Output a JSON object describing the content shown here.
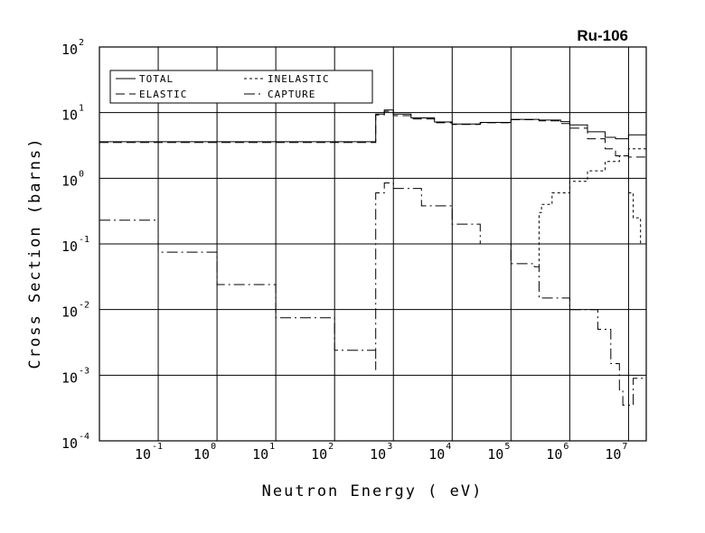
{
  "chart_data": {
    "type": "line",
    "title": "Ru-106",
    "xlabel": "Neutron Energy ( eV)",
    "ylabel": "Cross Section (barns)",
    "xscale": "log",
    "yscale": "log",
    "xlim": [
      0.01,
      20000000
    ],
    "ylim": [
      0.0001,
      100
    ],
    "grid": true,
    "legend_position": "top-left",
    "x_ticks": [
      {
        "base": "10",
        "exp": "-1",
        "value": 0.1
      },
      {
        "base": "10",
        "exp": "0",
        "value": 1
      },
      {
        "base": "10",
        "exp": "1",
        "value": 10
      },
      {
        "base": "10",
        "exp": "2",
        "value": 100
      },
      {
        "base": "10",
        "exp": "3",
        "value": 1000
      },
      {
        "base": "10",
        "exp": "4",
        "value": 10000
      },
      {
        "base": "10",
        "exp": "5",
        "value": 100000
      },
      {
        "base": "10",
        "exp": "6",
        "value": 1000000
      },
      {
        "base": "10",
        "exp": "7",
        "value": 10000000
      }
    ],
    "y_ticks": [
      {
        "base": "10",
        "exp": "-4",
        "value": 0.0001
      },
      {
        "base": "10",
        "exp": "-3",
        "value": 0.001
      },
      {
        "base": "10",
        "exp": "-2",
        "value": 0.01
      },
      {
        "base": "10",
        "exp": "-1",
        "value": 0.1
      },
      {
        "base": "10",
        "exp": "0",
        "value": 1
      },
      {
        "base": "10",
        "exp": "1",
        "value": 10
      },
      {
        "base": "10",
        "exp": "2",
        "value": 100
      }
    ],
    "series": [
      {
        "name": "TOTAL",
        "dash": "",
        "x": [
          0.01,
          0.05,
          0.3,
          10,
          100,
          500,
          500,
          700,
          1000,
          2000,
          5000,
          10000,
          30000,
          100000,
          300000,
          700000,
          1000000,
          2000000,
          4000000,
          6000000,
          10000000,
          20000000
        ],
        "y": [
          3.6,
          3.6,
          3.6,
          3.6,
          3.6,
          3.6,
          9.5,
          11.0,
          9.5,
          8.3,
          7.2,
          6.7,
          7.1,
          7.9,
          7.7,
          7.3,
          6.5,
          5.1,
          4.2,
          4.0,
          4.6,
          4.3
        ]
      },
      {
        "name": "ELASTIC",
        "dash": "10 5",
        "x": [
          0.01,
          0.05,
          0.3,
          10,
          100,
          500,
          500,
          700,
          1000,
          2000,
          5000,
          10000,
          30000,
          100000,
          300000,
          700000,
          1000000,
          2000000,
          4000000,
          6000000,
          10000000,
          20000000
        ],
        "y": [
          3.5,
          3.5,
          3.5,
          3.5,
          3.5,
          3.5,
          9.2,
          10.5,
          9.0,
          8.0,
          7.0,
          6.6,
          7.0,
          7.8,
          7.5,
          6.8,
          5.8,
          4.0,
          2.8,
          2.2,
          2.1,
          1.9
        ]
      },
      {
        "name": "INELASTIC",
        "dash": "3 3",
        "x": [
          300000,
          300000,
          330000,
          500000,
          1000000,
          2000000,
          4000000,
          7000000,
          10000000,
          20000000
        ],
        "y": [
          0.045,
          0.3,
          0.4,
          0.6,
          0.9,
          1.3,
          1.8,
          2.2,
          2.8,
          3.2
        ]
      },
      {
        "name": "CAPTURE",
        "dash": "12 4 2 4",
        "x": [
          0.01,
          0.1,
          1,
          10,
          100,
          500,
          500,
          700,
          1000,
          3000,
          10000,
          30000,
          100000,
          250000,
          300000,
          1000000,
          3000000,
          5000000,
          7000000,
          8000000,
          10000000,
          12000000,
          20000000
        ],
        "y": [
          0.23,
          0.075,
          0.024,
          0.0075,
          0.0024,
          0.0012,
          0.6,
          0.85,
          0.7,
          0.38,
          0.2,
          0.1,
          0.05,
          0.045,
          0.015,
          0.01,
          0.005,
          0.0015,
          0.0006,
          0.00035,
          0.00035,
          0.0009,
          0.001
        ]
      },
      {
        "name": "",
        "dash": "3 3",
        "x": [
          10000000,
          12000000,
          16000000,
          20000000
        ],
        "y": [
          0.6,
          0.25,
          0.1,
          0.08
        ]
      }
    ]
  }
}
